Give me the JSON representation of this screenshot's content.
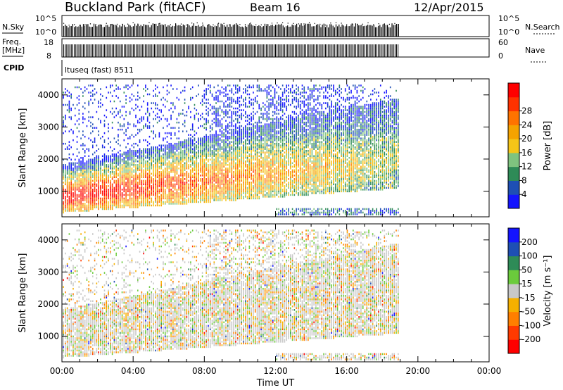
{
  "header": {
    "station": "Buckland Park (fitACF)",
    "beam": "Beam 16",
    "date": "12/Apr/2015"
  },
  "strip": {
    "nsky_label": "N.Sky",
    "nsky_ticks": [
      "10^5",
      "10^0"
    ],
    "nsearch_label": "N.Search",
    "freq_label_1": "Freq.",
    "freq_label_2": "[MHz]",
    "freq_ticks": [
      "18",
      "8"
    ],
    "nave_ticks": [
      "60",
      "0"
    ],
    "nave_label": "Nave",
    "cpid_label": "CPID",
    "cpid_value": "ltuseq (fast) 8511"
  },
  "chart_data": [
    {
      "type": "heatmap",
      "title": "",
      "xlabel": "",
      "ylabel": "Slant Range [km]",
      "xlim": [
        0,
        24
      ],
      "ylim": [
        200,
        4500
      ],
      "x_ticks": [
        "00:00",
        "04:00",
        "08:00",
        "12:00",
        "16:00",
        "20:00",
        "00:00"
      ],
      "y_ticks": [
        1000,
        2000,
        3000,
        4000
      ],
      "colorbar_label": "Power [dB]",
      "colorbar_ticks": [
        4,
        8,
        12,
        16,
        20,
        24,
        28
      ],
      "colorbar_colors": [
        "#1414ff",
        "#1e4fb4",
        "#2e8b57",
        "#7fc37f",
        "#f5c518",
        "#f5a300",
        "#ff7300",
        "#ff3200",
        "#ff0000"
      ],
      "data_end_hour": 18.9
    },
    {
      "type": "heatmap",
      "title": "",
      "xlabel": "Time UT",
      "ylabel": "Slant Range [km]",
      "xlim": [
        0,
        24
      ],
      "ylim": [
        200,
        4500
      ],
      "x_ticks": [
        "00:00",
        "04:00",
        "08:00",
        "12:00",
        "16:00",
        "20:00",
        "00:00"
      ],
      "y_ticks": [
        1000,
        2000,
        3000,
        4000
      ],
      "colorbar_label": "Velocity [m s⁻¹]",
      "colorbar_ticks": [
        "200",
        "100",
        "50",
        "15",
        "-15",
        "-50",
        "-100",
        "-200"
      ],
      "colorbar_colors": [
        "#1414ff",
        "#1e4fb4",
        "#2e8b57",
        "#6bcb3c",
        "#c8c8c8",
        "#f5b000",
        "#ff7f00",
        "#ff3a00",
        "#ff0000"
      ],
      "data_end_hour": 18.9
    }
  ]
}
